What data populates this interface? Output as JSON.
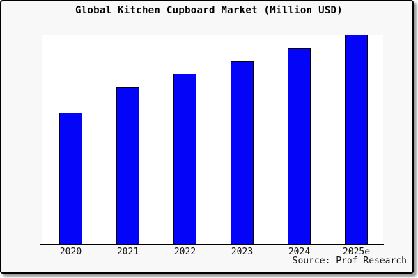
{
  "window": {
    "background": "#ffffff",
    "card_background": "#f8f8f8",
    "card_border_color": "#000000",
    "card_shadow_color": "#9a9a9a"
  },
  "chart_data": {
    "type": "bar",
    "title": "Global Kitchen Cupboard Market (Million USD)",
    "categories": [
      "2020",
      "2021",
      "2022",
      "2023",
      "2024",
      "2025e"
    ],
    "values": [
      62.9,
      75.2,
      81.5,
      87.4,
      93.7,
      100
    ],
    "value_scale": "relative index, 2025e = 100 (chart displays no y-axis tick values)",
    "xlabel": "",
    "ylabel": "",
    "ylim": [
      0,
      100
    ],
    "grid": false,
    "legend": false,
    "bar_color": "#0404f8",
    "bar_edge_color": "#000000",
    "plot_background": "#ffffff",
    "axis_color": "#000000",
    "source_note": "Source: Prof Research"
  }
}
